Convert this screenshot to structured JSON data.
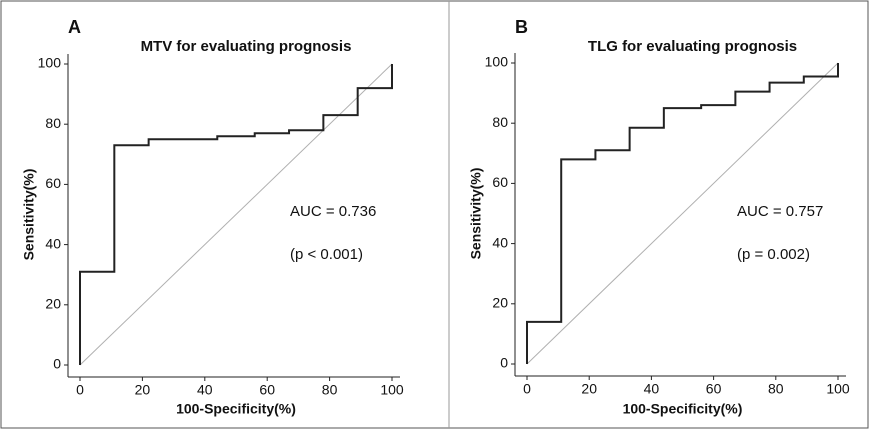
{
  "chart_data": [
    {
      "type": "line",
      "panel": "A",
      "title": "MTV for evaluating prognosis",
      "x_label": "100-Specificity(%)",
      "y_label": "Sensitivity(%)",
      "annotations": [
        "AUC = 0.736",
        "(p < 0.001)"
      ],
      "xlim": [
        0,
        100
      ],
      "ylim": [
        0,
        100
      ],
      "xticks": [
        0,
        20,
        40,
        60,
        80,
        100
      ],
      "yticks": [
        0,
        20,
        40,
        60,
        80,
        100
      ],
      "series": [
        {
          "color": "#222222",
          "x": [
            0,
            0,
            11,
            11,
            22,
            22,
            44,
            44,
            56,
            56,
            67,
            67,
            78,
            78,
            89,
            89,
            100,
            100
          ],
          "values": [
            0,
            31,
            31,
            73,
            73,
            75,
            75,
            76,
            76,
            77,
            77,
            78,
            78,
            83,
            83,
            92,
            92,
            100
          ]
        },
        {
          "color": "#b0b0b0",
          "x": [
            0,
            100
          ],
          "values": [
            0,
            100
          ]
        }
      ]
    },
    {
      "type": "line",
      "panel": "B",
      "title": "TLG for evaluating prognosis",
      "x_label": "100-Specificity(%)",
      "y_label": "Sensitivity(%)",
      "annotations": [
        "AUC = 0.757",
        "(p = 0.002)"
      ],
      "xlim": [
        0,
        100
      ],
      "ylim": [
        0,
        100
      ],
      "xticks": [
        0,
        20,
        40,
        60,
        80,
        100
      ],
      "yticks": [
        0,
        20,
        40,
        60,
        80,
        100
      ],
      "series": [
        {
          "color": "#222222",
          "x": [
            0,
            0,
            11,
            11,
            22,
            22,
            33,
            33,
            44,
            44,
            56,
            56,
            67,
            67,
            78,
            78,
            89,
            89,
            100,
            100
          ],
          "values": [
            0,
            14,
            14,
            68,
            68,
            71,
            71,
            78.5,
            78.5,
            85,
            85,
            86,
            86,
            90.5,
            90.5,
            93.5,
            93.5,
            95.5,
            95.5,
            100
          ]
        },
        {
          "color": "#b0b0b0",
          "x": [
            0,
            100
          ],
          "values": [
            0,
            100
          ]
        }
      ]
    }
  ]
}
